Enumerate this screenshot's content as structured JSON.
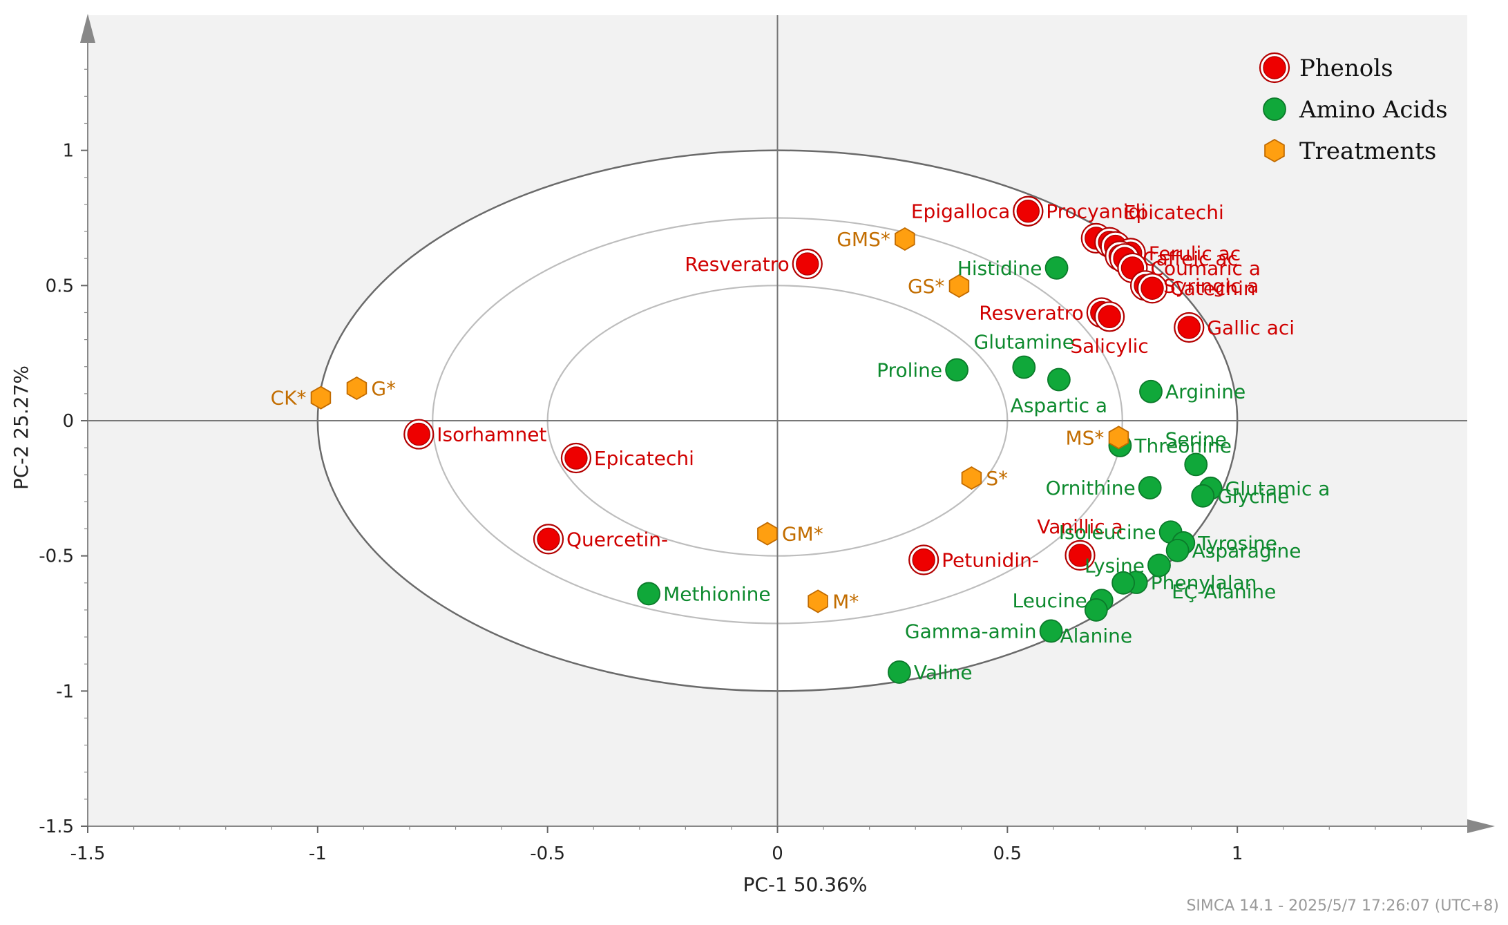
{
  "colors": {
    "phenol_fill": "#ee0000",
    "phenol_stroke": "#b30000",
    "phenol_label": "#d00000",
    "amino_fill": "#10a83a",
    "amino_stroke": "#0b7a2a",
    "amino_label": "#0d8a2e",
    "treat_fill": "#ff9f10",
    "treat_stroke": "#c06a00",
    "treat_label": "#c26d00",
    "plot_bg": "#f2f2f2",
    "ellipse_outer": "#6a6a6a",
    "ellipse_inner": "#bdbdbd",
    "axis": "#777777"
  },
  "footer": "SIMCA 14.1 - 2025/5/7 17:26:07 (UTC+8)",
  "chart_data": {
    "type": "scatter",
    "title": "",
    "xlabel": "PC-1 50.36%",
    "ylabel": "PC-2 25.27%",
    "xlim": [
      -1.5,
      1.5
    ],
    "ylim": [
      -1.5,
      1.5
    ],
    "xticks": [
      -1.5,
      -1,
      -0.5,
      0,
      0.5,
      1
    ],
    "xtick_labels": [
      "-1.5",
      "-1",
      "-0.5",
      "0",
      "0.5",
      "1"
    ],
    "yticks": [
      -1.5,
      -1,
      -0.5,
      0,
      0.5,
      1
    ],
    "ytick_labels": [
      "-1.5",
      "-1",
      "-0.5",
      "0",
      "0.5",
      "1"
    ],
    "ellipses": [
      {
        "rx": 1.0,
        "ry": 1.0
      },
      {
        "rx": 0.75,
        "ry": 0.75
      },
      {
        "rx": 0.5,
        "ry": 0.5
      }
    ],
    "legend": {
      "position": "top-right",
      "entries": [
        {
          "name": "Phenols",
          "marker": "ring-circle"
        },
        {
          "name": "Amino Acids",
          "marker": "circle"
        },
        {
          "name": "Treatments",
          "marker": "hexagon"
        }
      ]
    },
    "series": [
      {
        "name": "Phenols",
        "points": [
          {
            "label": "Epigalloca",
            "x": 0.545,
            "y": 0.775,
            "anchor": "left"
          },
          {
            "label": "Procyanidi",
            "x": 0.545,
            "y": 0.775,
            "anchor": "right"
          },
          {
            "label": "Resveratro",
            "x": 0.065,
            "y": 0.58,
            "anchor": "left"
          },
          {
            "label": "Epicatechi",
            "x": 0.693,
            "y": 0.675,
            "anchor": "top-right"
          },
          {
            "label": "",
            "x": 0.722,
            "y": 0.66,
            "anchor": "none"
          },
          {
            "label": "",
            "x": 0.735,
            "y": 0.645,
            "anchor": "none"
          },
          {
            "label": "Ferulic ac",
            "x": 0.768,
            "y": 0.62,
            "anchor": "right"
          },
          {
            "label": "",
            "x": 0.745,
            "y": 0.61,
            "anchor": "none"
          },
          {
            "label": "Caffeic ac",
            "x": 0.755,
            "y": 0.6,
            "anchor": "right"
          },
          {
            "label": "Coumaric a",
            "x": 0.772,
            "y": 0.565,
            "anchor": "right"
          },
          {
            "label": "Syringic a",
            "x": 0.8,
            "y": 0.5,
            "anchor": "right"
          },
          {
            "label": "Catechin",
            "x": 0.815,
            "y": 0.49,
            "anchor": "right"
          },
          {
            "label": "Resveratro",
            "x": 0.705,
            "y": 0.4,
            "anchor": "left"
          },
          {
            "label": "Salicylic",
            "x": 0.722,
            "y": 0.385,
            "anchor": "bottom"
          },
          {
            "label": "Gallic aci",
            "x": 0.895,
            "y": 0.345,
            "anchor": "right"
          },
          {
            "label": "Isorhamnet",
            "x": -0.78,
            "y": -0.05,
            "anchor": "right"
          },
          {
            "label": "Epicatechi",
            "x": -0.438,
            "y": -0.138,
            "anchor": "right"
          },
          {
            "label": "Quercetin-",
            "x": -0.498,
            "y": -0.438,
            "anchor": "right"
          },
          {
            "label": "Petunidin-",
            "x": 0.318,
            "y": -0.515,
            "anchor": "right"
          },
          {
            "label": "Vanillic a",
            "x": 0.658,
            "y": -0.498,
            "anchor": "top"
          }
        ]
      },
      {
        "name": "Amino Acids",
        "points": [
          {
            "label": "Histidine",
            "x": 0.607,
            "y": 0.565,
            "anchor": "left"
          },
          {
            "label": "Glutamine",
            "x": 0.536,
            "y": 0.198,
            "anchor": "top"
          },
          {
            "label": "Proline",
            "x": 0.39,
            "y": 0.188,
            "anchor": "left"
          },
          {
            "label": "Aspartic a",
            "x": 0.612,
            "y": 0.152,
            "anchor": "bottom"
          },
          {
            "label": "Arginine",
            "x": 0.812,
            "y": 0.108,
            "anchor": "right"
          },
          {
            "label": "Threonine",
            "x": 0.745,
            "y": -0.092,
            "anchor": "right"
          },
          {
            "label": "Serine",
            "x": 0.91,
            "y": -0.162,
            "anchor": "top"
          },
          {
            "label": "Ornithine",
            "x": 0.81,
            "y": -0.248,
            "anchor": "left"
          },
          {
            "label": "Glutamic a",
            "x": 0.942,
            "y": -0.25,
            "anchor": "right"
          },
          {
            "label": "Glycine",
            "x": 0.925,
            "y": -0.278,
            "anchor": "right"
          },
          {
            "label": "Isoleucine",
            "x": 0.855,
            "y": -0.412,
            "anchor": "left"
          },
          {
            "label": "Tyrosine",
            "x": 0.883,
            "y": -0.452,
            "anchor": "right"
          },
          {
            "label": "Asparagine",
            "x": 0.87,
            "y": -0.48,
            "anchor": "right"
          },
          {
            "label": "Lysine",
            "x": 0.83,
            "y": -0.535,
            "anchor": "left"
          },
          {
            "label": "Phenylalan",
            "x": 0.78,
            "y": -0.598,
            "anchor": "right"
          },
          {
            "label": "EÇ-Alanine",
            "x": 0.752,
            "y": -0.6,
            "anchor": "right2"
          },
          {
            "label": "Leucine",
            "x": 0.705,
            "y": -0.665,
            "anchor": "left"
          },
          {
            "label": "Alanine",
            "x": 0.693,
            "y": -0.7,
            "anchor": "bottom"
          },
          {
            "label": "Gamma-amin",
            "x": 0.595,
            "y": -0.778,
            "anchor": "left"
          },
          {
            "label": "Methionine",
            "x": -0.28,
            "y": -0.64,
            "anchor": "right"
          },
          {
            "label": "Valine",
            "x": 0.265,
            "y": -0.93,
            "anchor": "right"
          }
        ]
      },
      {
        "name": "Treatments",
        "points": [
          {
            "label": "GMS*",
            "x": 0.277,
            "y": 0.672,
            "anchor": "left"
          },
          {
            "label": "GS*",
            "x": 0.395,
            "y": 0.498,
            "anchor": "left"
          },
          {
            "label": "CK*",
            "x": -0.993,
            "y": 0.085,
            "anchor": "left"
          },
          {
            "label": "G*",
            "x": -0.915,
            "y": 0.12,
            "anchor": "right"
          },
          {
            "label": "MS*",
            "x": 0.742,
            "y": -0.062,
            "anchor": "left"
          },
          {
            "label": "S*",
            "x": 0.422,
            "y": -0.212,
            "anchor": "right"
          },
          {
            "label": "GM*",
            "x": -0.022,
            "y": -0.418,
            "anchor": "right"
          },
          {
            "label": "M*",
            "x": 0.088,
            "y": -0.668,
            "anchor": "right"
          }
        ]
      }
    ]
  }
}
